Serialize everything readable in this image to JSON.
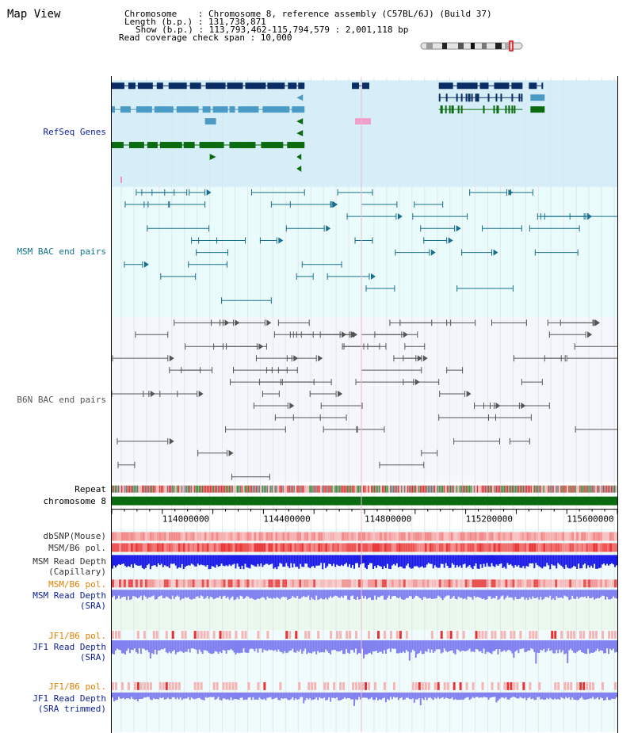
{
  "page": {
    "title": "Map View"
  },
  "header": {
    "chromosome_line": "Chromosome    : Chromosome 8, reference assembly (C57BL/6J) (Build 37)",
    "length_line": "Length (b.p.) : 131,738,871",
    "show_line": "Show (b.p.) : 113,793,462-115,794,579 : 2,001,118 bp",
    "coverage_line": "Read coverage check span : 10,000"
  },
  "tracks": {
    "refseq_label": "RefSeq Genes",
    "msm_bac_label": "MSM BAC end pairs",
    "b6n_bac_label": "B6N BAC end pairs",
    "repeat_label": "Repeat",
    "chromosome_label": "chromosome 8",
    "dbsnp_label": "dbSNP(Mouse)",
    "msm_b6_pol_label": "MSM/B6 pol.",
    "msm_depth_cap_label_1": "MSM Read Depth",
    "msm_depth_cap_label_2": "(Capillary)",
    "msm_b6_pol2_label": "MSM/B6 pol.",
    "msm_depth_sra_label_1": "MSM Read Depth",
    "msm_depth_sra_label_2": "(SRA)",
    "jf1_b6_pol_label": "JF1/B6 pol.",
    "jf1_depth_sra_label_1": "JF1 Read Depth",
    "jf1_depth_sra_label_2": "(SRA)",
    "jf1_b6_pol2_label": "JF1/B6 pol.",
    "jf1_depth_trim_label_1": "JF1 Read Depth",
    "jf1_depth_trim_label_2": "(SRA trimmed)"
  },
  "axis": {
    "ticks": [
      "114000000",
      "114400000",
      "114800000",
      "115200000",
      "115600000"
    ]
  },
  "colors": {
    "refseq_bg": "#d6eef8",
    "msm_bg": "#e9fbfb",
    "b6n_bg": "#f4f6fb",
    "gene_dark": "#0a2d63",
    "gene_mid": "#4a9ac4",
    "gene_green": "#0a6b10",
    "msm_line": "#1a6f8a",
    "b6n_line": "#555555",
    "chrom_bar": "#0a6b10",
    "snp_pink": "#f6a0a0",
    "pol_red": "#e83030",
    "depth_blue": "#1c1ce8",
    "depth_lilac": "#8080f0",
    "label_blue": "#0b1f9c",
    "label_orange": "#e08000",
    "label_teal": "#10758a"
  }
}
